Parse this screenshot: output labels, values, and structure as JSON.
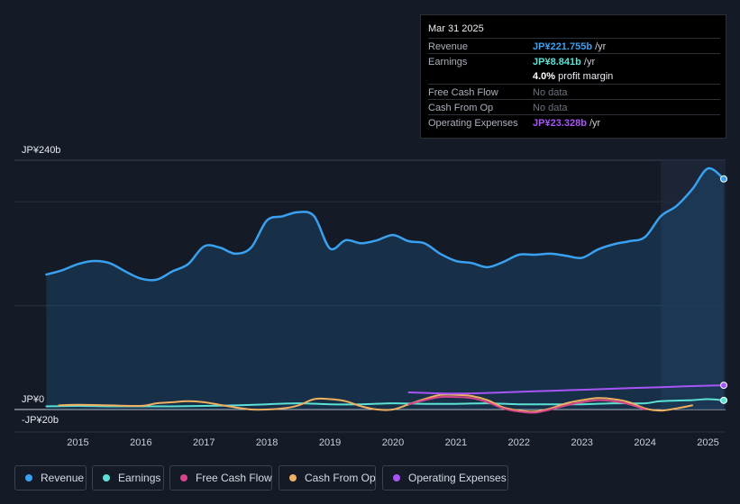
{
  "tooltip": {
    "date": "Mar 31 2025",
    "rows": {
      "revenue": {
        "label": "Revenue",
        "value": "JP¥221.755b",
        "unit": "/yr",
        "color": "#3aa0f0"
      },
      "earnings": {
        "label": "Earnings",
        "value": "JP¥8.841b",
        "unit": "/yr",
        "color": "#5ce1d6"
      },
      "margin": {
        "value": "4.0%",
        "text": "profit margin"
      },
      "fcf": {
        "label": "Free Cash Flow",
        "value": "No data"
      },
      "cfo": {
        "label": "Cash From Op",
        "value": "No data"
      },
      "opex": {
        "label": "Operating Expenses",
        "value": "JP¥23.328b",
        "unit": "/yr",
        "color": "#a855f7"
      }
    }
  },
  "legend": [
    {
      "label": "Revenue",
      "color": "#3aa0f0"
    },
    {
      "label": "Earnings",
      "color": "#5ce1d6"
    },
    {
      "label": "Free Cash Flow",
      "color": "#d6468a"
    },
    {
      "label": "Cash From Op",
      "color": "#f0b060"
    },
    {
      "label": "Operating Expenses",
      "color": "#a855f7"
    }
  ],
  "chart_data": {
    "type": "line",
    "y_top_label": "JP¥240b",
    "y_zero_label": "JP¥0",
    "y_bottom_label": "-JP¥20b",
    "ylim": [
      -20,
      240
    ],
    "xlim": [
      2014.45,
      2025.25
    ],
    "x_ticks": [
      "2015",
      "2016",
      "2017",
      "2018",
      "2019",
      "2020",
      "2021",
      "2022",
      "2023",
      "2024",
      "2025"
    ],
    "highlight_start": 2024.25,
    "series": [
      {
        "name": "Revenue",
        "color": "#3aa0f0",
        "fill": true,
        "points": [
          [
            2014.5,
            130
          ],
          [
            2014.75,
            134
          ],
          [
            2015.0,
            140
          ],
          [
            2015.25,
            143
          ],
          [
            2015.5,
            141
          ],
          [
            2015.75,
            133
          ],
          [
            2016.0,
            126
          ],
          [
            2016.25,
            125
          ],
          [
            2016.5,
            133
          ],
          [
            2016.75,
            140
          ],
          [
            2017.0,
            157
          ],
          [
            2017.25,
            156
          ],
          [
            2017.5,
            150
          ],
          [
            2017.75,
            156
          ],
          [
            2018.0,
            182
          ],
          [
            2018.25,
            186
          ],
          [
            2018.5,
            190
          ],
          [
            2018.75,
            186
          ],
          [
            2019.0,
            155
          ],
          [
            2019.25,
            163
          ],
          [
            2019.5,
            160
          ],
          [
            2019.75,
            163
          ],
          [
            2020.0,
            168
          ],
          [
            2020.25,
            162
          ],
          [
            2020.5,
            160
          ],
          [
            2020.75,
            150
          ],
          [
            2021.0,
            143
          ],
          [
            2021.25,
            141
          ],
          [
            2021.5,
            137
          ],
          [
            2021.75,
            142
          ],
          [
            2022.0,
            149
          ],
          [
            2022.25,
            149
          ],
          [
            2022.5,
            150
          ],
          [
            2022.75,
            148
          ],
          [
            2023.0,
            146
          ],
          [
            2023.25,
            154
          ],
          [
            2023.5,
            159
          ],
          [
            2023.75,
            162
          ],
          [
            2024.0,
            166
          ],
          [
            2024.25,
            186
          ],
          [
            2024.5,
            196
          ],
          [
            2024.75,
            212
          ],
          [
            2025.0,
            232
          ],
          [
            2025.25,
            222
          ]
        ]
      },
      {
        "name": "Earnings",
        "color": "#5ce1d6",
        "fill": false,
        "points": [
          [
            2014.5,
            3
          ],
          [
            2015.0,
            3.5
          ],
          [
            2015.5,
            3
          ],
          [
            2016.0,
            3
          ],
          [
            2016.5,
            3
          ],
          [
            2017.0,
            3.5
          ],
          [
            2017.5,
            4
          ],
          [
            2018.0,
            5
          ],
          [
            2018.5,
            6
          ],
          [
            2019.0,
            5
          ],
          [
            2019.5,
            5
          ],
          [
            2020.0,
            6
          ],
          [
            2020.5,
            5.5
          ],
          [
            2021.0,
            5.5
          ],
          [
            2021.5,
            6
          ],
          [
            2022.0,
            5
          ],
          [
            2022.5,
            5
          ],
          [
            2023.0,
            5
          ],
          [
            2023.5,
            6
          ],
          [
            2024.0,
            6
          ],
          [
            2024.25,
            8
          ],
          [
            2024.75,
            9
          ],
          [
            2025.0,
            10
          ],
          [
            2025.25,
            8.8
          ]
        ]
      },
      {
        "name": "Cash From Op",
        "color": "#f0b060",
        "fill": false,
        "points": [
          [
            2014.7,
            4
          ],
          [
            2015.0,
            4.5
          ],
          [
            2015.5,
            4
          ],
          [
            2016.0,
            3.5
          ],
          [
            2016.25,
            6
          ],
          [
            2016.5,
            7
          ],
          [
            2016.75,
            8
          ],
          [
            2017.0,
            7
          ],
          [
            2017.25,
            4.5
          ],
          [
            2017.5,
            2
          ],
          [
            2017.75,
            0
          ],
          [
            2018.0,
            0
          ],
          [
            2018.25,
            1
          ],
          [
            2018.5,
            4
          ],
          [
            2018.75,
            10
          ],
          [
            2019.0,
            10
          ],
          [
            2019.25,
            8
          ],
          [
            2019.5,
            3
          ],
          [
            2019.75,
            0
          ],
          [
            2020.0,
            0
          ],
          [
            2020.25,
            5
          ],
          [
            2020.5,
            10
          ],
          [
            2020.75,
            14
          ],
          [
            2021.0,
            14
          ],
          [
            2021.25,
            13
          ],
          [
            2021.5,
            9
          ],
          [
            2021.75,
            2
          ],
          [
            2022.0,
            -1
          ],
          [
            2022.25,
            -2
          ],
          [
            2022.5,
            1
          ],
          [
            2022.75,
            6
          ],
          [
            2023.0,
            9
          ],
          [
            2023.25,
            11
          ],
          [
            2023.5,
            10
          ],
          [
            2023.75,
            7
          ],
          [
            2024.0,
            1
          ],
          [
            2024.25,
            -1
          ],
          [
            2024.5,
            1
          ],
          [
            2024.75,
            4
          ]
        ]
      },
      {
        "name": "Free Cash Flow",
        "color": "#d6468a",
        "fill": false,
        "points": [
          [
            2020.25,
            5
          ],
          [
            2020.5,
            9
          ],
          [
            2020.75,
            12
          ],
          [
            2021.0,
            12
          ],
          [
            2021.25,
            11
          ],
          [
            2021.5,
            7
          ],
          [
            2021.75,
            1
          ],
          [
            2022.0,
            -2
          ],
          [
            2022.25,
            -3
          ],
          [
            2022.5,
            0
          ],
          [
            2022.75,
            4
          ],
          [
            2023.0,
            7
          ],
          [
            2023.25,
            9
          ],
          [
            2023.5,
            8
          ],
          [
            2023.75,
            5
          ],
          [
            2024.0,
            0
          ]
        ]
      },
      {
        "name": "Operating Expenses",
        "color": "#a855f7",
        "fill": false,
        "points": [
          [
            2020.25,
            16.5
          ],
          [
            2020.75,
            15.5
          ],
          [
            2021.25,
            15.5
          ],
          [
            2021.75,
            16.5
          ],
          [
            2022.25,
            17.5
          ],
          [
            2022.75,
            18.5
          ],
          [
            2023.25,
            19.5
          ],
          [
            2023.75,
            20.5
          ],
          [
            2024.25,
            21.5
          ],
          [
            2024.75,
            22.5
          ],
          [
            2025.25,
            23.3
          ]
        ]
      }
    ]
  }
}
